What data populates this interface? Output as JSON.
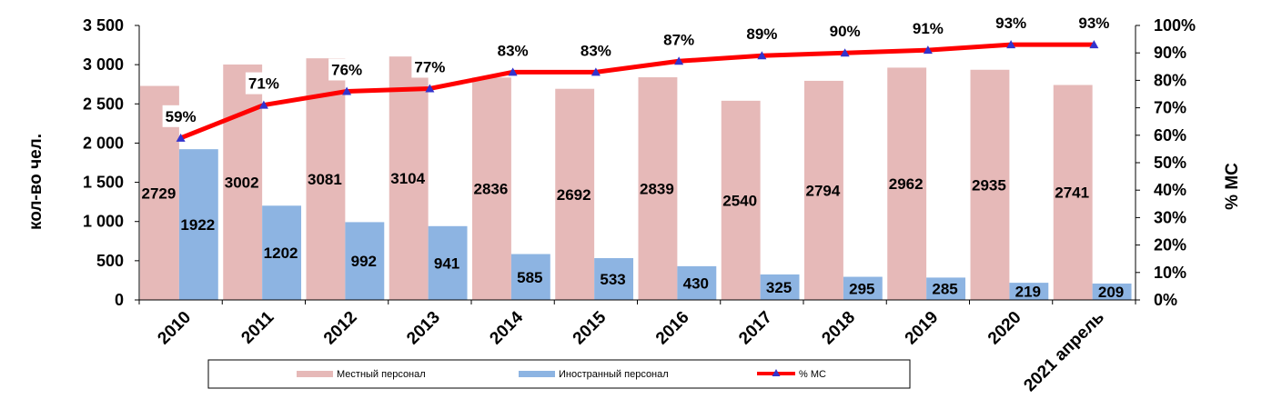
{
  "chart_data": {
    "type": "bar",
    "categories": [
      "2010",
      "2011",
      "2012",
      "2013",
      "2014",
      "2015",
      "2016",
      "2017",
      "2018",
      "2019",
      "2020",
      "2021 апрель"
    ],
    "series": [
      {
        "name": "Местный  персонал",
        "type": "bar",
        "axis": "left",
        "color": "#E6B9B8",
        "values": [
          2729,
          3002,
          3081,
          3104,
          2836,
          2692,
          2839,
          2540,
          2794,
          2962,
          2935,
          2741
        ]
      },
      {
        "name": "Иностранный персонал",
        "type": "bar",
        "axis": "left",
        "color": "#8DB4E2",
        "values": [
          1922,
          1202,
          992,
          941,
          585,
          533,
          430,
          325,
          295,
          285,
          219,
          209
        ]
      },
      {
        "name": "% МС",
        "type": "line",
        "axis": "right",
        "color": "#FF0000",
        "marker_color": "#3333CC",
        "values": [
          59,
          71,
          76,
          77,
          83,
          83,
          87,
          89,
          90,
          91,
          93,
          93
        ],
        "labels": [
          "59%",
          "71%",
          "76%",
          "77%",
          "83%",
          "83%",
          "87%",
          "89%",
          "90%",
          "91%",
          "93%",
          "93%"
        ]
      }
    ],
    "ylabel": "кол-во чел.",
    "y2label": "% МС",
    "ylim": [
      0,
      3500
    ],
    "y2lim": [
      0,
      100
    ],
    "yticks": [
      "0",
      "500",
      "1 000",
      "1 500",
      "2 000",
      "2 500",
      "3 000",
      "3 500"
    ],
    "y2ticks": [
      "0%",
      "10%",
      "20%",
      "30%",
      "40%",
      "50%",
      "60%",
      "70%",
      "80%",
      "90%",
      "100%"
    ],
    "grid": false,
    "legend_position": "bottom"
  }
}
